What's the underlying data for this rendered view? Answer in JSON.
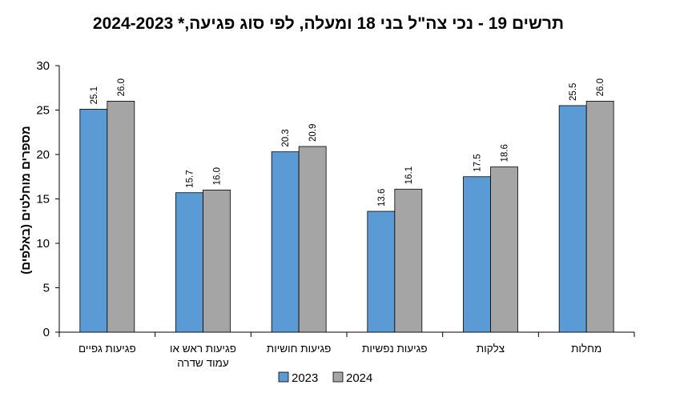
{
  "chart_data": {
    "type": "bar",
    "title": "תרשים 19 - נכי צה\"ל בני 18 ומעלה, לפי סוג פגיעה,* 2024-2023",
    "ylabel": "מספרים מוחלטים (באלפים)",
    "xlabel": "",
    "ylim": [
      0,
      30
    ],
    "yticks": [
      0,
      5,
      10,
      15,
      20,
      25,
      30
    ],
    "grid": false,
    "legend_position": "bottom",
    "categories": [
      [
        "פגיעות גפיים"
      ],
      [
        "פגיעות ראש או",
        "עמוד שדרה"
      ],
      [
        "פגיעות חושיות"
      ],
      [
        "פגיעות נפשיות"
      ],
      [
        "צלקות"
      ],
      [
        "מחלות"
      ]
    ],
    "series": [
      {
        "name": "2023",
        "color": "#5b9bd5",
        "values": [
          25.1,
          15.7,
          20.3,
          13.6,
          17.5,
          25.5
        ],
        "labels": [
          "25.1",
          "15.7",
          "20.3",
          "13.6",
          "17.5",
          "25.5"
        ]
      },
      {
        "name": "2024",
        "color": "#a5a5a5",
        "values": [
          26.0,
          16.0,
          20.9,
          16.1,
          18.6,
          26.0
        ],
        "labels": [
          "26.0",
          "16.0",
          "20.9",
          "16.1",
          "18.6",
          "26.0"
        ]
      }
    ]
  }
}
